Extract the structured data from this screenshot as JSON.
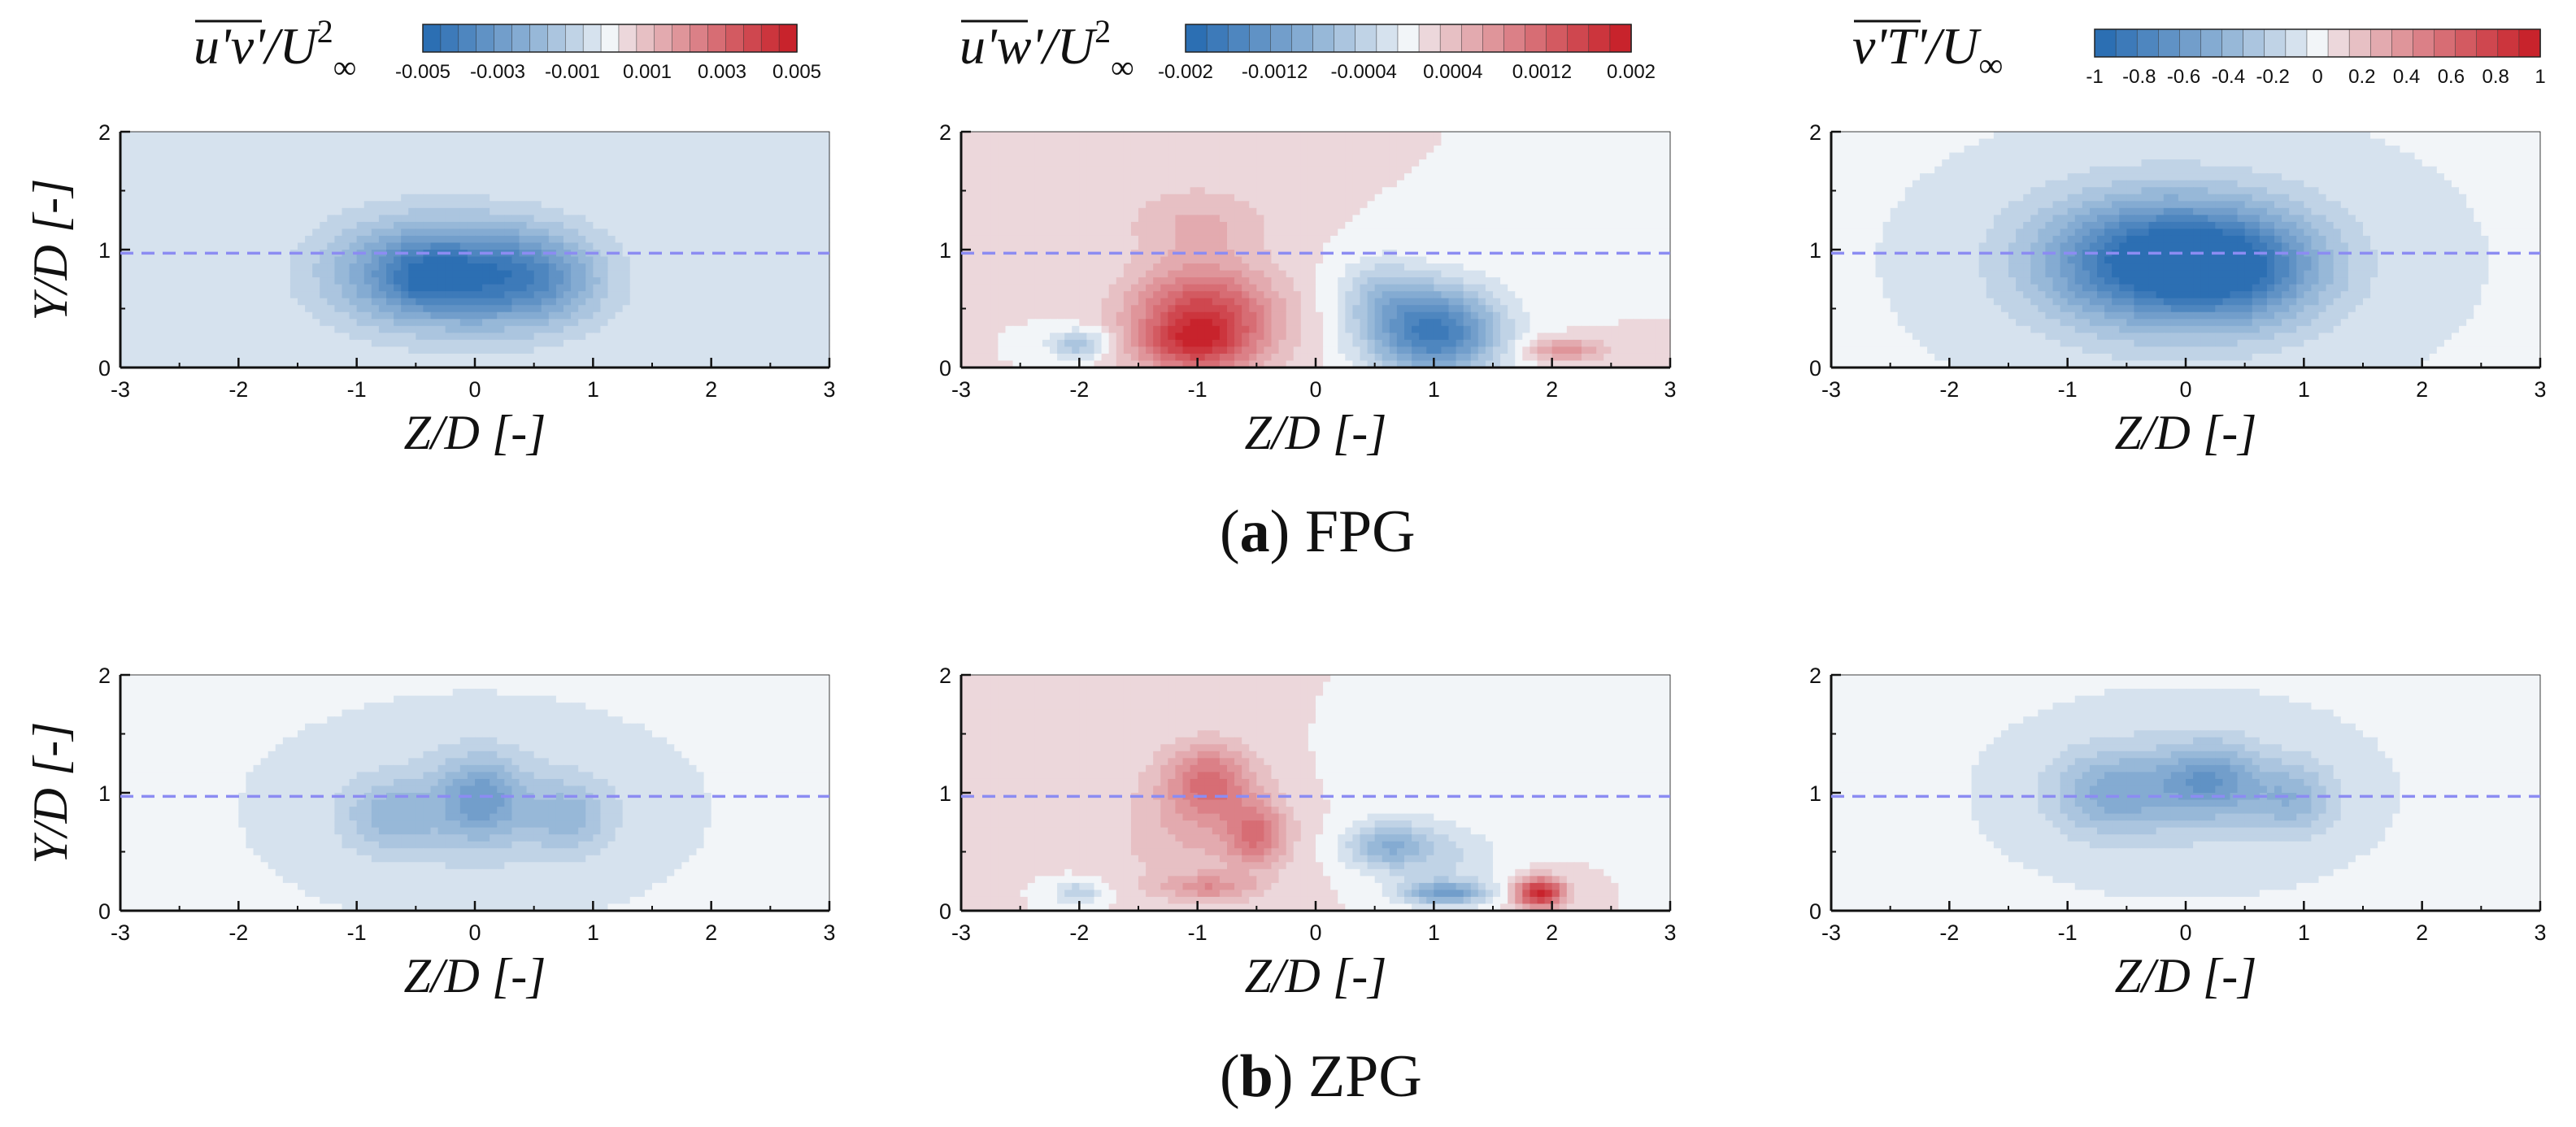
{
  "figure": {
    "captions": [
      {
        "tag": "a",
        "label": "FPG"
      },
      {
        "tag": "b",
        "label": "ZPG"
      }
    ]
  },
  "colors": {
    "negative": "#2c6fb3",
    "positive": "#c8232c",
    "neutral": "#f2f5f8",
    "frame": "#111111",
    "reference_line": "#8c8cf2"
  },
  "chart_data": [
    {
      "id": "fpg-uv",
      "type": "heatmap",
      "row": "FPG",
      "quantity": "u'v'/U∞²",
      "title_parts": [
        "u'v'",
        "/U",
        "2",
        "∞"
      ],
      "xlabel": "Z/D [-]",
      "ylabel": "Y/D [-]",
      "xlim": [
        -3,
        3
      ],
      "ylim": [
        0,
        2
      ],
      "xticks": [
        "-3",
        "-2",
        "-1",
        "0",
        "1",
        "2",
        "3"
      ],
      "yticks": [
        "0",
        "1",
        "2"
      ],
      "reference_line_y": 0.97,
      "colorbar": {
        "min": -0.005,
        "max": 0.005,
        "levels": 21,
        "tick_labels": [
          "-0.005",
          "-0.003",
          "-0.001",
          "0.001",
          "0.003",
          "0.005"
        ]
      },
      "blobs": [
        {
          "z": -0.35,
          "y": 0.8,
          "sz": 0.85,
          "sy": 0.45,
          "v": -0.0038
        },
        {
          "z": 0.5,
          "y": 0.75,
          "sz": 0.6,
          "sy": 0.4,
          "v": -0.0026
        },
        {
          "z": -0.4,
          "y": 0.75,
          "sz": 0.35,
          "sy": 0.25,
          "v": -0.0012
        }
      ],
      "background": -0.0003
    },
    {
      "id": "fpg-uw",
      "type": "heatmap",
      "row": "FPG",
      "quantity": "u'w'/U∞²",
      "title_parts": [
        "u'w'",
        "/U",
        "2",
        "∞"
      ],
      "xlabel": "Z/D [-]",
      "ylabel": "",
      "xlim": [
        -3,
        3
      ],
      "ylim": [
        0,
        2
      ],
      "xticks": [
        "-3",
        "-2",
        "-1",
        "0",
        "1",
        "2",
        "3"
      ],
      "yticks": [
        "0",
        "1",
        "2"
      ],
      "reference_line_y": 0.97,
      "colorbar": {
        "min": -0.002,
        "max": 0.002,
        "levels": 21,
        "tick_labels": [
          "-0.002",
          "-0.0012",
          "-0.0004",
          "0.0004",
          "0.0012",
          "0.002"
        ]
      },
      "blobs": [
        {
          "z": -0.95,
          "y": 0.4,
          "sz": 0.6,
          "sy": 0.45,
          "v": 0.0016
        },
        {
          "z": -1.05,
          "y": 0.2,
          "sz": 0.4,
          "sy": 0.2,
          "v": 0.0006
        },
        {
          "z": 1.0,
          "y": 0.3,
          "sz": 0.55,
          "sy": 0.38,
          "v": -0.0019
        },
        {
          "z": 0.55,
          "y": 0.65,
          "sz": 0.35,
          "sy": 0.3,
          "v": -0.0005
        },
        {
          "z": -2.0,
          "y": 0.2,
          "sz": 0.25,
          "sy": 0.12,
          "v": -0.0008
        },
        {
          "z": 2.1,
          "y": 0.15,
          "sz": 0.35,
          "sy": 0.1,
          "v": 0.0007
        },
        {
          "z": -1.0,
          "y": 1.25,
          "sz": 0.6,
          "sy": 0.3,
          "v": 0.0004
        }
      ],
      "background": 0.0001
    },
    {
      "id": "fpg-vt",
      "type": "heatmap",
      "row": "FPG",
      "quantity": "v'T'/U∞",
      "title_parts": [
        "v'T'",
        "/U",
        "",
        "∞"
      ],
      "xlabel": "Z/D [-]",
      "ylabel": "",
      "xlim": [
        -3,
        3
      ],
      "ylim": [
        0,
        2
      ],
      "xticks": [
        "-3",
        "-2",
        "-1",
        "0",
        "1",
        "2",
        "3"
      ],
      "yticks": [
        "0",
        "1",
        "2"
      ],
      "reference_line_y": 0.97,
      "colorbar": {
        "min": -1,
        "max": 1,
        "levels": 21,
        "tick_labels": [
          "-1",
          "-0.8",
          "-0.6",
          "-0.4",
          "-0.2",
          "0",
          "0.2",
          "0.4",
          "0.6",
          "0.8",
          "1"
        ]
      },
      "blobs": [
        {
          "z": -0.3,
          "y": 0.9,
          "sz": 0.9,
          "sy": 0.5,
          "v": -0.85
        },
        {
          "z": 0.5,
          "y": 0.85,
          "sz": 0.7,
          "sy": 0.45,
          "v": -0.55
        },
        {
          "z": 0.0,
          "y": 0.9,
          "sz": 1.5,
          "sy": 0.8,
          "v": -0.18
        }
      ],
      "background": -0.04
    },
    {
      "id": "zpg-uv",
      "type": "heatmap",
      "row": "ZPG",
      "quantity": "u'v'/U∞²",
      "title_parts": [],
      "xlabel": "Z/D [-]",
      "ylabel": "Y/D [-]",
      "xlim": [
        -3,
        3
      ],
      "ylim": [
        0,
        2
      ],
      "xticks": [
        "-3",
        "-2",
        "-1",
        "0",
        "1",
        "2",
        "3"
      ],
      "yticks": [
        "0",
        "1",
        "2"
      ],
      "reference_line_y": 0.97,
      "colorbar": {
        "min": -0.005,
        "max": 0.005,
        "levels": 21,
        "tick_labels": []
      },
      "blobs": [
        {
          "z": 0.05,
          "y": 0.95,
          "sz": 0.35,
          "sy": 0.35,
          "v": -0.0022
        },
        {
          "z": -0.7,
          "y": 0.8,
          "sz": 0.4,
          "sy": 0.3,
          "v": -0.0014
        },
        {
          "z": 0.8,
          "y": 0.8,
          "sz": 0.35,
          "sy": 0.3,
          "v": -0.0014
        },
        {
          "z": 0.0,
          "y": 0.85,
          "sz": 1.2,
          "sy": 0.6,
          "v": -0.0008
        }
      ],
      "background": -0.0002
    },
    {
      "id": "zpg-uw",
      "type": "heatmap",
      "row": "ZPG",
      "quantity": "u'w'/U∞²",
      "title_parts": [],
      "xlabel": "Z/D [-]",
      "ylabel": "",
      "xlim": [
        -3,
        3
      ],
      "ylim": [
        0,
        2
      ],
      "xticks": [
        "-3",
        "-2",
        "-1",
        "0",
        "1",
        "2",
        "3"
      ],
      "yticks": [
        "0",
        "1",
        "2"
      ],
      "reference_line_y": 0.97,
      "colorbar": {
        "min": -0.002,
        "max": 0.002,
        "levels": 21,
        "tick_labels": []
      },
      "blobs": [
        {
          "z": -0.9,
          "y": 1.1,
          "sz": 0.35,
          "sy": 0.3,
          "v": 0.0009
        },
        {
          "z": -0.5,
          "y": 0.65,
          "sz": 0.25,
          "sy": 0.25,
          "v": 0.0009
        },
        {
          "z": -1.0,
          "y": 0.7,
          "sz": 0.7,
          "sy": 0.6,
          "v": 0.0004
        },
        {
          "z": -0.9,
          "y": 0.2,
          "sz": 0.4,
          "sy": 0.1,
          "v": 0.0006
        },
        {
          "z": 1.9,
          "y": 0.15,
          "sz": 0.2,
          "sy": 0.13,
          "v": 0.0019
        },
        {
          "z": 0.6,
          "y": 0.55,
          "sz": 0.35,
          "sy": 0.2,
          "v": -0.0009
        },
        {
          "z": 1.1,
          "y": 0.15,
          "sz": 0.35,
          "sy": 0.1,
          "v": -0.0012
        },
        {
          "z": 1.1,
          "y": 0.45,
          "sz": 0.5,
          "sy": 0.3,
          "v": -0.0004
        },
        {
          "z": -2.0,
          "y": 0.15,
          "sz": 0.2,
          "sy": 0.1,
          "v": -0.0006
        },
        {
          "z": 0.7,
          "y": 1.2,
          "sz": 0.5,
          "sy": 0.35,
          "v": -0.0002
        }
      ],
      "background": 0.0001
    },
    {
      "id": "zpg-vt",
      "type": "heatmap",
      "row": "ZPG",
      "quantity": "v'T'/U∞",
      "title_parts": [],
      "xlabel": "Z/D [-]",
      "ylabel": "",
      "xlim": [
        -3,
        3
      ],
      "ylim": [
        0,
        2
      ],
      "xticks": [
        "-3",
        "-2",
        "-1",
        "0",
        "1",
        "2",
        "3"
      ],
      "yticks": [
        "0",
        "1",
        "2"
      ],
      "reference_line_y": 0.97,
      "colorbar": {
        "min": -1,
        "max": 1,
        "levels": 21,
        "tick_labels": []
      },
      "blobs": [
        {
          "z": 0.2,
          "y": 1.1,
          "sz": 0.4,
          "sy": 0.3,
          "v": -0.5
        },
        {
          "z": -0.6,
          "y": 1.0,
          "sz": 0.5,
          "sy": 0.35,
          "v": -0.38
        },
        {
          "z": 0.9,
          "y": 0.95,
          "sz": 0.35,
          "sy": 0.3,
          "v": -0.32
        },
        {
          "z": 0.0,
          "y": 1.0,
          "sz": 1.3,
          "sy": 0.65,
          "v": -0.14
        }
      ],
      "background": -0.03
    }
  ]
}
